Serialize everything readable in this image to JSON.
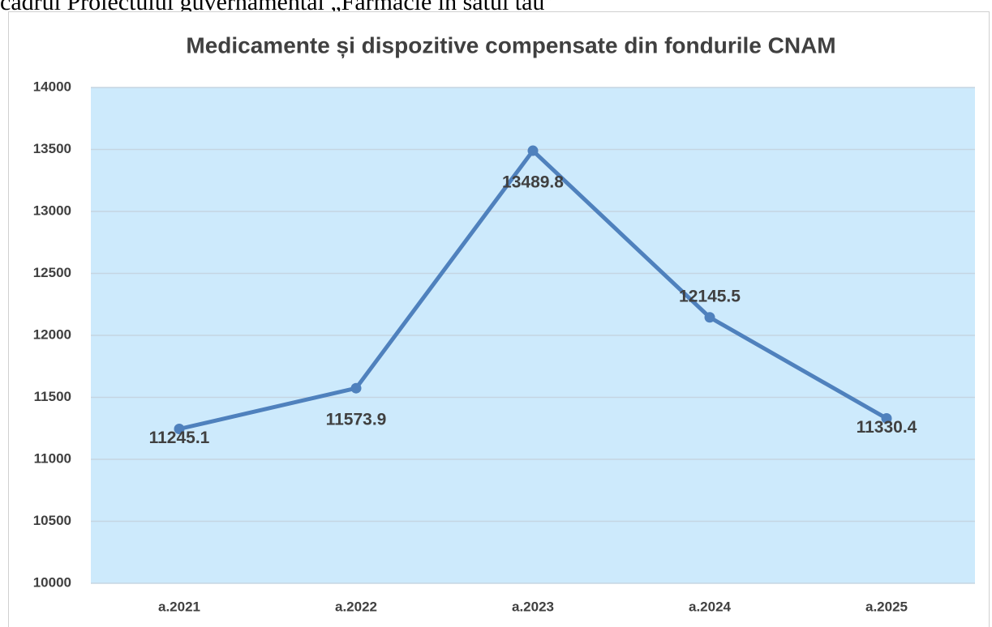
{
  "header_text": "cadrul Proiectului guvernamental „Farmacie în satul tău”",
  "chart_data": {
    "type": "line",
    "title": "Medicamente și dispozitive compensate din fondurile CNAM",
    "categories": [
      "a.2021",
      "a.2022",
      "a.2023",
      "a.2024",
      "a.2025"
    ],
    "values": [
      11245.1,
      11573.9,
      13489.8,
      12145.5,
      11330.4
    ],
    "color": "#4f81bd",
    "ylim": [
      10000,
      14000
    ],
    "yticks": [
      10000,
      10500,
      11000,
      11500,
      12000,
      12500,
      13000,
      13500,
      14000
    ],
    "grid": true
  }
}
